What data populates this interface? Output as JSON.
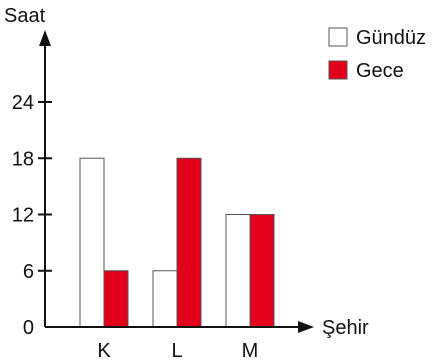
{
  "chart_data": {
    "type": "bar",
    "ylabel": "Saat",
    "xlabel": "Şehir",
    "categories": [
      "K",
      "L",
      "M"
    ],
    "yticks": [
      0,
      6,
      12,
      18,
      24
    ],
    "ylim": [
      0,
      24
    ],
    "grid": false,
    "legend_position": "top-right",
    "series": [
      {
        "name": "Gündüz",
        "values": [
          18,
          6,
          12
        ],
        "color": "#ffffff"
      },
      {
        "name": "Gece",
        "values": [
          6,
          18,
          12
        ],
        "color": "#e3001b"
      }
    ]
  }
}
